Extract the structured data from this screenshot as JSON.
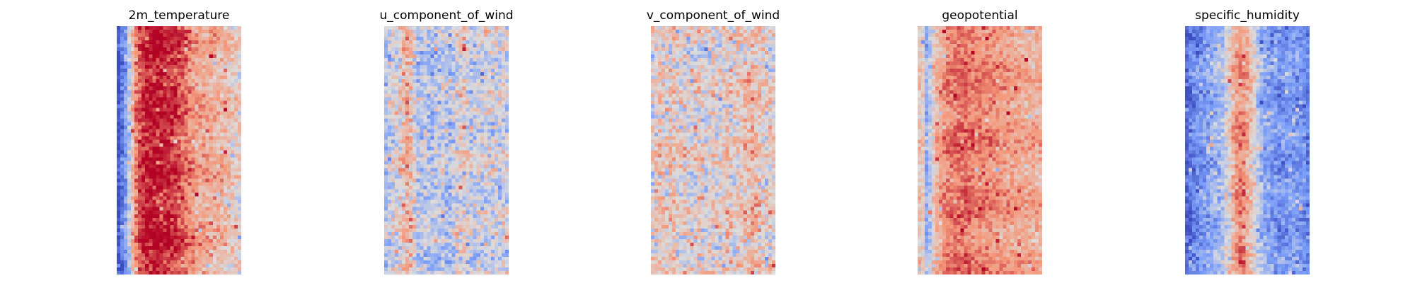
{
  "chart_data": [
    {
      "type": "heatmap",
      "title": "2m_temperature",
      "colormap": "coolwarm",
      "axes": "off",
      "grid": false,
      "rows": 70,
      "cols": 35,
      "column_profile": [
        -0.95,
        -0.7,
        -0.45,
        -0.15,
        0.25,
        0.55,
        0.75,
        0.85,
        0.92,
        0.94,
        0.95,
        0.94,
        0.92,
        0.9,
        0.88,
        0.85,
        0.8,
        0.75,
        0.68,
        0.62,
        0.56,
        0.5,
        0.45,
        0.42,
        0.4,
        0.38,
        0.36,
        0.33,
        0.3,
        0.27,
        0.24,
        0.2,
        0.16,
        0.12,
        0.1
      ],
      "noise": 0.22
    },
    {
      "type": "heatmap",
      "title": "u_component_of_wind",
      "colormap": "coolwarm",
      "axes": "off",
      "grid": false,
      "rows": 70,
      "cols": 35,
      "column_profile": [
        -0.2,
        -0.1,
        0.0,
        -0.05,
        0.05,
        0.25,
        0.35,
        0.25,
        0.05,
        -0.15,
        -0.2,
        -0.1,
        -0.25,
        -0.3,
        -0.2,
        -0.15,
        -0.1,
        -0.2,
        -0.25,
        -0.1,
        0.0,
        0.05,
        0.1,
        -0.05,
        -0.1,
        -0.15,
        -0.05,
        -0.1,
        0.0,
        -0.05,
        -0.1,
        -0.05,
        -0.1,
        0.0,
        -0.05
      ],
      "noise": 0.3
    },
    {
      "type": "heatmap",
      "title": "v_component_of_wind",
      "colormap": "coolwarm",
      "axes": "off",
      "grid": false,
      "rows": 70,
      "cols": 35,
      "column_profile": [
        0.05,
        0.1,
        0.15,
        0.1,
        0.05,
        0.15,
        0.2,
        0.1,
        0.05,
        0.1,
        0.05,
        0.0,
        0.05,
        0.1,
        0.0,
        -0.05,
        0.05,
        0.1,
        0.05,
        0.0,
        0.1,
        0.15,
        0.1,
        0.05,
        0.1,
        0.15,
        0.2,
        0.25,
        0.3,
        0.2,
        0.15,
        0.1,
        0.05,
        0.1,
        0.05
      ],
      "noise": 0.3
    },
    {
      "type": "heatmap",
      "title": "geopotential",
      "colormap": "coolwarm",
      "axes": "off",
      "grid": false,
      "rows": 70,
      "cols": 35,
      "column_profile": [
        0.2,
        0.1,
        -0.35,
        -0.2,
        0.15,
        0.3,
        0.4,
        0.5,
        0.55,
        0.6,
        0.62,
        0.64,
        0.65,
        0.64,
        0.62,
        0.6,
        0.58,
        0.56,
        0.55,
        0.53,
        0.52,
        0.5,
        0.48,
        0.46,
        0.45,
        0.44,
        0.42,
        0.4,
        0.39,
        0.38,
        0.37,
        0.36,
        0.35,
        0.34,
        0.33
      ],
      "noise": 0.18
    },
    {
      "type": "heatmap",
      "title": "specific_humidity",
      "colormap": "coolwarm",
      "axes": "off",
      "grid": false,
      "rows": 70,
      "cols": 35,
      "column_profile": [
        -0.85,
        -0.75,
        -0.65,
        -0.6,
        -0.55,
        -0.5,
        -0.45,
        -0.4,
        -0.35,
        -0.3,
        -0.2,
        -0.05,
        0.1,
        0.3,
        0.45,
        0.55,
        0.5,
        0.35,
        0.2,
        0.05,
        -0.15,
        -0.3,
        -0.4,
        -0.45,
        -0.5,
        -0.5,
        -0.55,
        -0.55,
        -0.55,
        -0.5,
        -0.5,
        -0.5,
        -0.55,
        -0.6,
        -0.65
      ],
      "noise": 0.22
    }
  ]
}
